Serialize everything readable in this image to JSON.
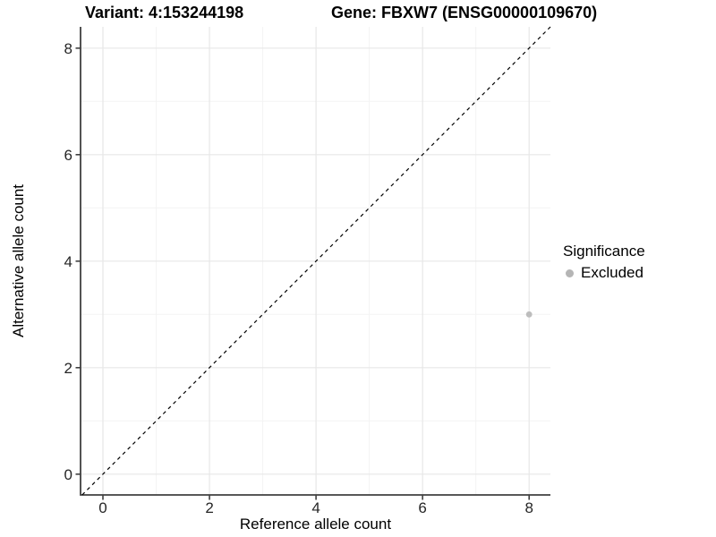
{
  "header": {
    "variant_title": "Variant: 4:153244198",
    "gene_title": "Gene: FBXW7 (ENSG00000109670)"
  },
  "chart_data": {
    "type": "scatter",
    "title": "Variant: 4:153244198   Gene: FBXW7 (ENSG00000109670)",
    "xlabel": "Reference allele count",
    "ylabel": "Alternative allele count",
    "xlim": [
      -0.42,
      8.4
    ],
    "ylim": [
      -0.39,
      8.4
    ],
    "x_ticks": [
      0,
      2,
      4,
      6,
      8
    ],
    "y_ticks": [
      0,
      2,
      4,
      6,
      8
    ],
    "x_minor_ticks": [
      1,
      3,
      5,
      7
    ],
    "y_minor_ticks": [
      1,
      3,
      5,
      7
    ],
    "grid": true,
    "identity_line": {
      "slope": 1,
      "intercept": 0,
      "style": "dashed"
    },
    "series": [
      {
        "name": "Excluded",
        "color": "#bdbdbd",
        "points": [
          {
            "x": 8,
            "y": 3
          }
        ]
      }
    ],
    "legend": {
      "title": "Significance",
      "position": "right",
      "entries": [
        {
          "label": "Excluded",
          "color": "#b5b5b5"
        }
      ]
    },
    "colors": {
      "grid_major": "#e7e7e7",
      "grid_minor": "#f3f3f3",
      "axis": "#404040",
      "identity_line": "#000000",
      "background": "#ffffff"
    }
  }
}
